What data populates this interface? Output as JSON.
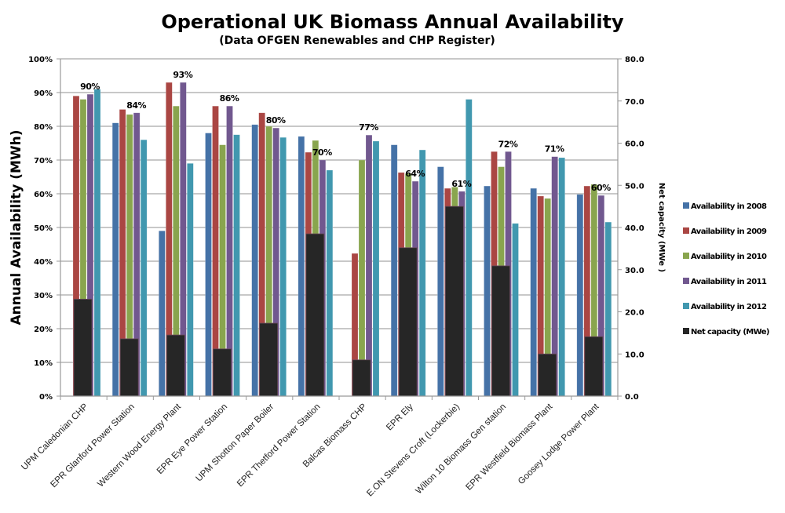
{
  "chart_data": {
    "type": "bar",
    "title": "Operational UK Biomass Annual Availability",
    "subtitle": "(Data OFGEN Renewables and CHP Register)",
    "ylabel": "Annual Availability (MWh)",
    "y2label": "Net capacity (MWe )",
    "ylim": [
      0,
      100
    ],
    "y2lim": [
      0,
      80
    ],
    "yticks": [
      "0%",
      "10%",
      "20%",
      "30%",
      "40%",
      "50%",
      "60%",
      "70%",
      "80%",
      "90%",
      "100%"
    ],
    "y2ticks": [
      "0.0",
      "10.0",
      "20.0",
      "30.0",
      "40.0",
      "50.0",
      "60.0",
      "70.0",
      "80.0"
    ],
    "grid": true,
    "legend_position": "right",
    "categories": [
      "UPM Caledonian CHP",
      "EPR Glanford Power Station",
      "Western Wood Energy Plant",
      "EPR Eye Power Station",
      "UPM Shotton Paper Boiler",
      "EPR Thetford Power Station",
      "Balcas Biomass CHP",
      "EPR Ely",
      "E.ON Stevens Croft (Lockerbie)",
      "Wilton 10 Biomass  Gen station",
      "EPR Westfield Biomass Plant",
      "Goosey Lodge Power Plant"
    ],
    "series": [
      {
        "name": "Availability in 2008",
        "axis": "left",
        "color": "#4572a7",
        "values": [
          null,
          81,
          49,
          78,
          80.5,
          77,
          null,
          74.5,
          68,
          62.3,
          61.6,
          59.8
        ]
      },
      {
        "name": "Availability in 2009",
        "axis": "left",
        "color": "#aa4643",
        "values": [
          89,
          85,
          93,
          86,
          84,
          72.3,
          42.3,
          66.3,
          61.6,
          72.5,
          59.3,
          62.3
        ]
      },
      {
        "name": "Availability in 2010",
        "axis": "left",
        "color": "#89a54e",
        "values": [
          88,
          83.5,
          86,
          74.5,
          80,
          75.8,
          70,
          66,
          62,
          68,
          58.6,
          62.8
        ]
      },
      {
        "name": "Availability in 2011",
        "axis": "left",
        "color": "#71588f",
        "values": [
          89.5,
          84,
          93,
          86,
          79.5,
          70,
          77.4,
          63.7,
          60.7,
          72.5,
          71,
          59.5
        ]
      },
      {
        "name": "Availability in 2012",
        "axis": "left",
        "color": "#4198af",
        "values": [
          91,
          76,
          69,
          77.5,
          76.7,
          67,
          75.6,
          73,
          88,
          51.2,
          70.7,
          51.6
        ]
      },
      {
        "name": "Net capacity (MWe)",
        "axis": "right",
        "color": "#262626",
        "values": [
          23,
          13.6,
          14.5,
          11.2,
          17.3,
          38.5,
          8.6,
          35.2,
          45,
          30.9,
          10,
          14.1
        ]
      }
    ],
    "data_labels": {
      "series": "Availability in 2011",
      "texts": [
        "90%",
        "84%",
        "93%",
        "86%",
        "80%",
        "70%",
        "77%",
        "64%",
        "61%",
        "72%",
        "71%",
        "60%"
      ]
    }
  }
}
